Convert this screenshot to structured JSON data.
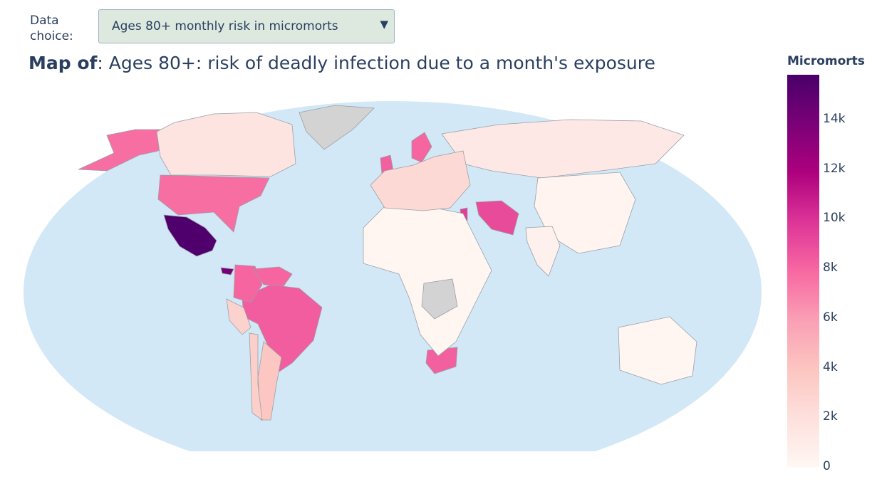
{
  "controls": {
    "data_choice_label": "Data choice:",
    "dropdown_value": "Ages 80+ monthly risk in micromorts",
    "dropdown_arrow_icon": "triangle-down-icon"
  },
  "map": {
    "title_prefix": "Map of",
    "title_text": ": Ages 80+: risk of deadly infection due to a month's exposure",
    "projection": "robinson",
    "ocean_color": "#d2e8f6",
    "no_data_color": "#d3d3d3",
    "border_color": "#9aa0a6"
  },
  "colorbar": {
    "title": "Micromorts",
    "range": [
      0,
      15800
    ],
    "colorscale": [
      "#fff7f3",
      "#fde0dd",
      "#fcc5c0",
      "#fa9fb5",
      "#f768a1",
      "#dd3497",
      "#ae017e",
      "#7a0177",
      "#49006a"
    ],
    "ticks": [
      {
        "label": "14k",
        "value": 14000
      },
      {
        "label": "12k",
        "value": 12000
      },
      {
        "label": "10k",
        "value": 10000
      },
      {
        "label": "8k",
        "value": 8000
      },
      {
        "label": "6k",
        "value": 6000
      },
      {
        "label": "4k",
        "value": 4000
      },
      {
        "label": "2k",
        "value": 2000
      },
      {
        "label": "0",
        "value": 0
      }
    ]
  },
  "regions": [
    {
      "name": "Mexico",
      "value": 15500
    },
    {
      "name": "Iran",
      "value": 9000
    },
    {
      "name": "Brazil",
      "value": 8300
    },
    {
      "name": "South Africa",
      "value": 8200
    },
    {
      "name": "United States",
      "value": 7700
    },
    {
      "name": "Alaska",
      "value": 7700
    },
    {
      "name": "Colombia",
      "value": 8000
    },
    {
      "name": "Venezuela",
      "value": 8000
    },
    {
      "name": "Sweden",
      "value": 8000
    },
    {
      "name": "United Kingdom",
      "value": 8200
    },
    {
      "name": "Jordan",
      "value": 9500
    },
    {
      "name": "Honduras",
      "value": 14000
    },
    {
      "name": "Canada",
      "value": 1600
    },
    {
      "name": "Russia",
      "value": 1300
    },
    {
      "name": "China",
      "value": 250
    },
    {
      "name": "India",
      "value": 600
    },
    {
      "name": "Argentina",
      "value": 3800
    },
    {
      "name": "Peru",
      "value": 3000
    },
    {
      "name": "Chile",
      "value": 3200
    },
    {
      "name": "Australia",
      "value": 150
    },
    {
      "name": "Africa",
      "value": 200
    },
    {
      "name": "Europe",
      "value": 2500
    },
    {
      "name": "Greenland",
      "value": null
    },
    {
      "name": "Congo",
      "value": null
    }
  ]
}
